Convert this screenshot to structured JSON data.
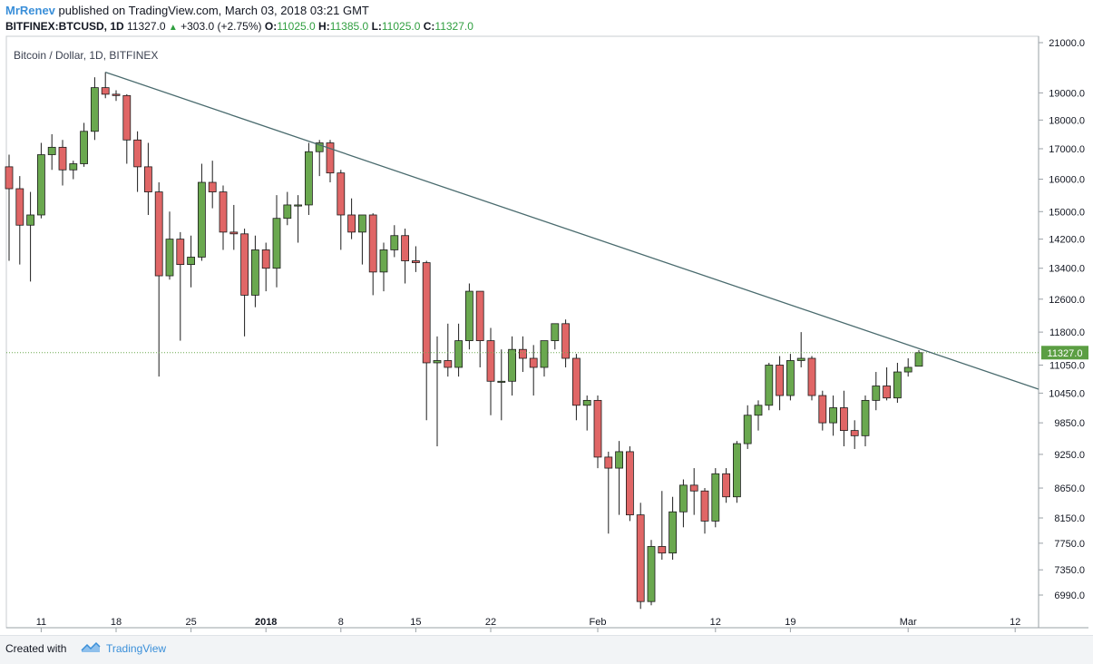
{
  "header": {
    "author": "MrRenev",
    "published_text": "published on TradingView.com, March 03, 2018 03:21 GMT",
    "symbol_line": "BITFINEX:BTCUSD, 1D",
    "last": "11327.0",
    "change": "+303.0 (+2.75%)",
    "o_label": "O:",
    "o_value": "11025.0",
    "h_label": "H:",
    "h_value": "11385.0",
    "l_label": "L:",
    "l_value": "11025.0",
    "c_label": "C:",
    "c_value": "11327.0"
  },
  "footer": {
    "created_with": "Created with",
    "brand": "TradingView"
  },
  "icons": {
    "up_arrow": "triangle-up-icon",
    "logo": "tradingview-logo-icon"
  },
  "colors": {
    "up": "#6aa84f",
    "down": "#e06666",
    "trendline": "#4a6b6e",
    "last_price": "#5b9e43",
    "axis_text": "#131722"
  },
  "chart_data": {
    "type": "candlestick",
    "title": "Bitcoin / Dollar, 1D, BITFINEX",
    "last_price_label": "11327.0",
    "y_tick_labels": [
      "21000.0",
      "19000.0",
      "18000.0",
      "17000.0",
      "16000.0",
      "15000.0",
      "14200.0",
      "13400.0",
      "12600.0",
      "11800.0",
      "11050.0",
      "10450.0",
      "9850.0",
      "9250.0",
      "8650.0",
      "8150.0",
      "7750.0",
      "7350.0",
      "6990.0"
    ],
    "x_tick_labels": [
      "11",
      "18",
      "25",
      "2018",
      "8",
      "15",
      "22",
      "Feb",
      "12",
      "19",
      "Mar",
      "12"
    ],
    "trendline": {
      "start": {
        "date": "2017-12-17",
        "price": 19800
      },
      "end": {
        "date": "2018-03-12",
        "price": 10700
      }
    },
    "candles": [
      {
        "d": "2017-12-08",
        "o": 16400,
        "h": 16800,
        "l": 13600,
        "c": 15700
      },
      {
        "d": "2017-12-09",
        "o": 15700,
        "h": 16100,
        "l": 13500,
        "c": 14600
      },
      {
        "d": "2017-12-10",
        "o": 14600,
        "h": 15600,
        "l": 13050,
        "c": 14900
      },
      {
        "d": "2017-12-11",
        "o": 14900,
        "h": 17200,
        "l": 14800,
        "c": 16800
      },
      {
        "d": "2017-12-12",
        "o": 16800,
        "h": 17500,
        "l": 16300,
        "c": 17050
      },
      {
        "d": "2017-12-13",
        "o": 17050,
        "h": 17300,
        "l": 15800,
        "c": 16300
      },
      {
        "d": "2017-12-14",
        "o": 16300,
        "h": 16600,
        "l": 16000,
        "c": 16500
      },
      {
        "d": "2017-12-15",
        "o": 16500,
        "h": 17900,
        "l": 16400,
        "c": 17600
      },
      {
        "d": "2017-12-16",
        "o": 17600,
        "h": 19600,
        "l": 17300,
        "c": 19200
      },
      {
        "d": "2017-12-17",
        "o": 19200,
        "h": 19800,
        "l": 18800,
        "c": 18950
      },
      {
        "d": "2017-12-18",
        "o": 18950,
        "h": 19100,
        "l": 18700,
        "c": 18900
      },
      {
        "d": "2017-12-19",
        "o": 18900,
        "h": 18950,
        "l": 16500,
        "c": 17300
      },
      {
        "d": "2017-12-20",
        "o": 17300,
        "h": 17600,
        "l": 15600,
        "c": 16400
      },
      {
        "d": "2017-12-21",
        "o": 16400,
        "h": 17200,
        "l": 14900,
        "c": 15600
      },
      {
        "d": "2017-12-22",
        "o": 15600,
        "h": 15900,
        "l": 10800,
        "c": 13200
      },
      {
        "d": "2017-12-23",
        "o": 13200,
        "h": 15000,
        "l": 13100,
        "c": 14200
      },
      {
        "d": "2017-12-24",
        "o": 14200,
        "h": 14400,
        "l": 11600,
        "c": 13500
      },
      {
        "d": "2017-12-25",
        "o": 13500,
        "h": 14300,
        "l": 12900,
        "c": 13700
      },
      {
        "d": "2017-12-26",
        "o": 13700,
        "h": 16500,
        "l": 13600,
        "c": 15900
      },
      {
        "d": "2017-12-27",
        "o": 15900,
        "h": 16600,
        "l": 15100,
        "c": 15600
      },
      {
        "d": "2017-12-28",
        "o": 15600,
        "h": 15800,
        "l": 13900,
        "c": 14400
      },
      {
        "d": "2017-12-29",
        "o": 14400,
        "h": 15200,
        "l": 13900,
        "c": 14350
      },
      {
        "d": "2017-12-30",
        "o": 14350,
        "h": 14500,
        "l": 11700,
        "c": 12700
      },
      {
        "d": "2017-12-31",
        "o": 12700,
        "h": 14300,
        "l": 12400,
        "c": 13900
      },
      {
        "d": "2018-01-01",
        "o": 13900,
        "h": 14100,
        "l": 12800,
        "c": 13400
      },
      {
        "d": "2018-01-02",
        "o": 13400,
        "h": 15500,
        "l": 12900,
        "c": 14800
      },
      {
        "d": "2018-01-03",
        "o": 14800,
        "h": 15600,
        "l": 14600,
        "c": 15200
      },
      {
        "d": "2018-01-04",
        "o": 15200,
        "h": 15500,
        "l": 14100,
        "c": 15200
      },
      {
        "d": "2018-01-05",
        "o": 15200,
        "h": 17200,
        "l": 14900,
        "c": 16900
      },
      {
        "d": "2018-01-06",
        "o": 16900,
        "h": 17300,
        "l": 16100,
        "c": 17200
      },
      {
        "d": "2018-01-07",
        "o": 17200,
        "h": 17300,
        "l": 15900,
        "c": 16200
      },
      {
        "d": "2018-01-08",
        "o": 16200,
        "h": 16300,
        "l": 13900,
        "c": 14900
      },
      {
        "d": "2018-01-09",
        "o": 14900,
        "h": 15400,
        "l": 14200,
        "c": 14400
      },
      {
        "d": "2018-01-10",
        "o": 14400,
        "h": 14900,
        "l": 13500,
        "c": 14900
      },
      {
        "d": "2018-01-11",
        "o": 14900,
        "h": 14950,
        "l": 12700,
        "c": 13300
      },
      {
        "d": "2018-01-12",
        "o": 13300,
        "h": 14100,
        "l": 12800,
        "c": 13900
      },
      {
        "d": "2018-01-13",
        "o": 13900,
        "h": 14600,
        "l": 13700,
        "c": 14300
      },
      {
        "d": "2018-01-14",
        "o": 14300,
        "h": 14500,
        "l": 13000,
        "c": 13600
      },
      {
        "d": "2018-01-15",
        "o": 13600,
        "h": 14000,
        "l": 13300,
        "c": 13550
      },
      {
        "d": "2018-01-16",
        "o": 13550,
        "h": 13600,
        "l": 9900,
        "c": 11100
      },
      {
        "d": "2018-01-17",
        "o": 11100,
        "h": 11700,
        "l": 9400,
        "c": 11150
      },
      {
        "d": "2018-01-18",
        "o": 11150,
        "h": 12000,
        "l": 10800,
        "c": 11000
      },
      {
        "d": "2018-01-19",
        "o": 11000,
        "h": 12000,
        "l": 10800,
        "c": 11600
      },
      {
        "d": "2018-01-20",
        "o": 11600,
        "h": 13000,
        "l": 11400,
        "c": 12800
      },
      {
        "d": "2018-01-21",
        "o": 12800,
        "h": 12800,
        "l": 11000,
        "c": 11600
      },
      {
        "d": "2018-01-22",
        "o": 11600,
        "h": 11900,
        "l": 10000,
        "c": 10700
      },
      {
        "d": "2018-01-23",
        "o": 10700,
        "h": 11400,
        "l": 9900,
        "c": 10700
      },
      {
        "d": "2018-01-24",
        "o": 10700,
        "h": 11700,
        "l": 10400,
        "c": 11400
      },
      {
        "d": "2018-01-25",
        "o": 11400,
        "h": 11700,
        "l": 10900,
        "c": 11200
      },
      {
        "d": "2018-01-26",
        "o": 11200,
        "h": 11500,
        "l": 10400,
        "c": 11000
      },
      {
        "d": "2018-01-27",
        "o": 11000,
        "h": 11500,
        "l": 10800,
        "c": 11600
      },
      {
        "d": "2018-01-28",
        "o": 11600,
        "h": 12000,
        "l": 11400,
        "c": 12000
      },
      {
        "d": "2018-01-29",
        "o": 12000,
        "h": 12100,
        "l": 11000,
        "c": 11200
      },
      {
        "d": "2018-01-30",
        "o": 11200,
        "h": 11300,
        "l": 9900,
        "c": 10200
      },
      {
        "d": "2018-01-31",
        "o": 10200,
        "h": 10400,
        "l": 9700,
        "c": 10300
      },
      {
        "d": "2018-02-01",
        "o": 10300,
        "h": 10400,
        "l": 9000,
        "c": 9200
      },
      {
        "d": "2018-02-02",
        "o": 9200,
        "h": 9300,
        "l": 7900,
        "c": 9000
      },
      {
        "d": "2018-02-03",
        "o": 9000,
        "h": 9500,
        "l": 8200,
        "c": 9300
      },
      {
        "d": "2018-02-04",
        "o": 9300,
        "h": 9400,
        "l": 8100,
        "c": 8200
      },
      {
        "d": "2018-02-05",
        "o": 8200,
        "h": 8400,
        "l": 6800,
        "c": 6900
      },
      {
        "d": "2018-02-06",
        "o": 6900,
        "h": 7800,
        "l": 6850,
        "c": 7700
      },
      {
        "d": "2018-02-07",
        "o": 7700,
        "h": 8600,
        "l": 7500,
        "c": 7600
      },
      {
        "d": "2018-02-08",
        "o": 7600,
        "h": 8500,
        "l": 7500,
        "c": 8250
      },
      {
        "d": "2018-02-09",
        "o": 8250,
        "h": 8800,
        "l": 8000,
        "c": 8700
      },
      {
        "d": "2018-02-10",
        "o": 8700,
        "h": 9000,
        "l": 8200,
        "c": 8600
      },
      {
        "d": "2018-02-11",
        "o": 8600,
        "h": 8650,
        "l": 7900,
        "c": 8100
      },
      {
        "d": "2018-02-12",
        "o": 8100,
        "h": 9000,
        "l": 8000,
        "c": 8900
      },
      {
        "d": "2018-02-13",
        "o": 8900,
        "h": 9000,
        "l": 8400,
        "c": 8500
      },
      {
        "d": "2018-02-14",
        "o": 8500,
        "h": 9500,
        "l": 8400,
        "c": 9450
      },
      {
        "d": "2018-02-15",
        "o": 9450,
        "h": 10200,
        "l": 9350,
        "c": 10000
      },
      {
        "d": "2018-02-16",
        "o": 10000,
        "h": 10300,
        "l": 9700,
        "c": 10200
      },
      {
        "d": "2018-02-17",
        "o": 10200,
        "h": 11100,
        "l": 10100,
        "c": 11050
      },
      {
        "d": "2018-02-18",
        "o": 11050,
        "h": 11250,
        "l": 10100,
        "c": 10400
      },
      {
        "d": "2018-02-19",
        "o": 10400,
        "h": 11300,
        "l": 10300,
        "c": 11150
      },
      {
        "d": "2018-02-20",
        "o": 11150,
        "h": 11800,
        "l": 11000,
        "c": 11200
      },
      {
        "d": "2018-02-21",
        "o": 11200,
        "h": 11250,
        "l": 10300,
        "c": 10400
      },
      {
        "d": "2018-02-22",
        "o": 10400,
        "h": 10500,
        "l": 9700,
        "c": 9850
      },
      {
        "d": "2018-02-23",
        "o": 9850,
        "h": 10400,
        "l": 9600,
        "c": 10150
      },
      {
        "d": "2018-02-24",
        "o": 10150,
        "h": 10500,
        "l": 9400,
        "c": 9700
      },
      {
        "d": "2018-02-25",
        "o": 9700,
        "h": 9900,
        "l": 9350,
        "c": 9600
      },
      {
        "d": "2018-02-26",
        "o": 9600,
        "h": 10400,
        "l": 9400,
        "c": 10300
      },
      {
        "d": "2018-02-27",
        "o": 10300,
        "h": 10900,
        "l": 10100,
        "c": 10600
      },
      {
        "d": "2018-02-28",
        "o": 10600,
        "h": 11000,
        "l": 10300,
        "c": 10350
      },
      {
        "d": "2018-03-01",
        "o": 10350,
        "h": 11100,
        "l": 10250,
        "c": 10900
      },
      {
        "d": "2018-03-02",
        "o": 10900,
        "h": 11200,
        "l": 10800,
        "c": 11000
      },
      {
        "d": "2018-03-03",
        "o": 11025,
        "h": 11385,
        "l": 11025,
        "c": 11327
      }
    ]
  }
}
